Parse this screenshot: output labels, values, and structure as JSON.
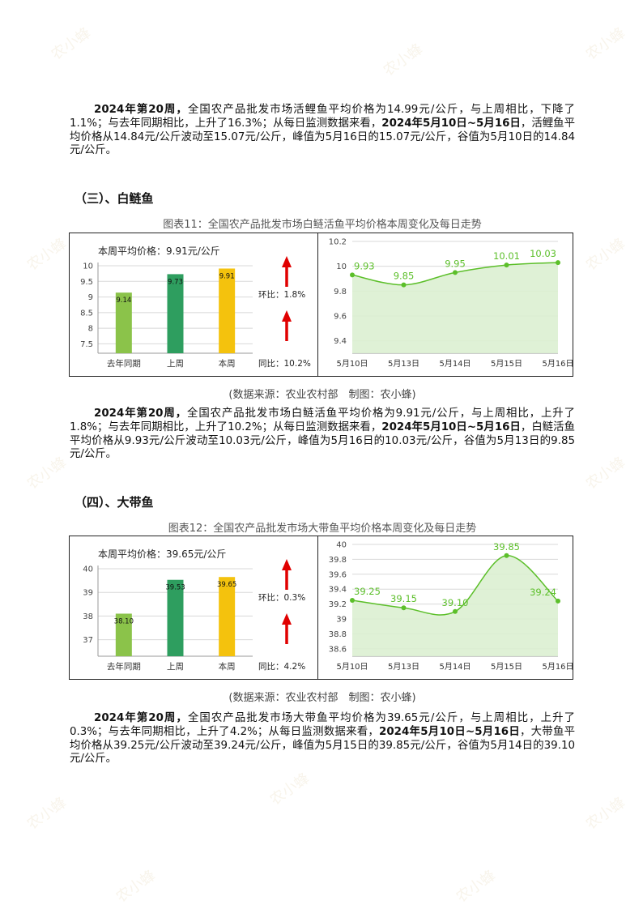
{
  "paragraph_carp": {
    "b1": "2024年第20周，",
    "t1": "全国农产品批发市场活鲤鱼平均价格为14.99元/公斤，与上周相比，下降了1.1%；与去年同期相比，上升了16.3%；从每日监测数据来看，",
    "b2": "2024年5月10日~5月16日",
    "t2": "，活鲤鱼平均价格从14.84元/公斤波动至15.07元/公斤，峰值为5月16日的15.07元/公斤，谷值为5月10日的14.84元/公斤。"
  },
  "sections": [
    {
      "title": "（三）、白鲢鱼",
      "caption": "图表11：全国农产品批发市场白鲢活鱼平均价格本周变化及每日走势",
      "source": "(数据来源：农业农村部　制图：农小蜂)",
      "paragraph": {
        "b1": "2024年第20周，",
        "t1": "全国农产品批发市场白鲢活鱼平均价格为9.91元/公斤，与上周相比，上升了1.8%；与去年同期相比，上升了10.2%；从每日监测数据来看，",
        "b2": "2024年5月10日~5月16日",
        "t2": "，白鲢活鱼平均价格从9.93元/公斤波动至10.03元/公斤，峰值为5月16日的10.03元/公斤，谷值为5月13日的9.85元/公斤。"
      }
    },
    {
      "title": "（四）、大带鱼",
      "caption": "图表12：全国农产品批发市场大带鱼平均价格本周变化及每日走势",
      "source": "(数据来源：农业农村部　制图：农小蜂)",
      "paragraph": {
        "b1": "2024年第20周，",
        "t1": "全国农产品批发市场大带鱼平均价格为39.65元/公斤，与上周相比，上升了0.3%；与去年同期相比，上升了4.2%；从每日监测数据来看，",
        "b2": "2024年5月10日~5月16日",
        "t2": "，大带鱼平均价格从39.25元/公斤波动至39.24元/公斤，峰值为5月15日的39.85元/公斤，谷值为5月14日的39.10元/公斤。"
      }
    }
  ],
  "chart_data": [
    {
      "type": "bar",
      "title": "本周平均价格：9.91元/公斤",
      "categories": [
        "去年同期",
        "上周",
        "本周"
      ],
      "values": [
        9.14,
        9.73,
        9.91
      ],
      "value_labels": [
        "9.14",
        "9.73",
        "9.91"
      ],
      "yticks": [
        "7.5",
        "8",
        "8.5",
        "9",
        "9.5",
        "10"
      ],
      "ylim": [
        7.2,
        10
      ],
      "bar_colors": [
        "#8bc34a",
        "#2e9e5f",
        "#f4c20d"
      ],
      "annotations": [
        {
          "arrow": "up",
          "label": "环比：1.8%"
        },
        {
          "arrow": "up",
          "label": "同比：10.2%"
        }
      ],
      "grid": true
    },
    {
      "type": "area",
      "categories": [
        "5月10日",
        "5月13日",
        "5月14日",
        "5月15日",
        "5月16日"
      ],
      "values": [
        9.93,
        9.85,
        9.95,
        10.01,
        10.03
      ],
      "value_labels": [
        "9.93",
        "9.85",
        "9.95",
        "10.01",
        "10.03"
      ],
      "yticks": [
        "9.4",
        "9.6",
        "9.8",
        "10",
        "10.2"
      ],
      "ylim": [
        9.3,
        10.2
      ],
      "line_color": "#5cbf2a",
      "fill_color": "#dcefd2",
      "grid": true
    },
    {
      "type": "bar",
      "title": "本周平均价格：39.65元/公斤",
      "categories": [
        "去年同期",
        "上周",
        "本周"
      ],
      "values": [
        38.1,
        39.53,
        39.65
      ],
      "value_labels": [
        "38.10",
        "39.53",
        "39.65"
      ],
      "yticks": [
        "37",
        "38",
        "39",
        "40"
      ],
      "ylim": [
        36.3,
        40
      ],
      "bar_colors": [
        "#8bc34a",
        "#2e9e5f",
        "#f4c20d"
      ],
      "annotations": [
        {
          "arrow": "up",
          "label": "环比：0.3%"
        },
        {
          "arrow": "up",
          "label": "同比：4.2%"
        }
      ],
      "grid": true
    },
    {
      "type": "area",
      "categories": [
        "5月10日",
        "5月13日",
        "5月14日",
        "5月15日",
        "5月16日"
      ],
      "values": [
        39.25,
        39.15,
        39.1,
        39.85,
        39.24
      ],
      "value_labels": [
        "39.25",
        "39.15",
        "39.10",
        "39.85",
        "39.24"
      ],
      "yticks": [
        "38.6",
        "38.8",
        "39",
        "39.2",
        "39.4",
        "39.6",
        "39.8",
        "40"
      ],
      "ylim": [
        38.5,
        40
      ],
      "line_color": "#5cbf2a",
      "fill_color": "#dcefd2",
      "grid": true
    }
  ],
  "watermark": "农小蜂"
}
